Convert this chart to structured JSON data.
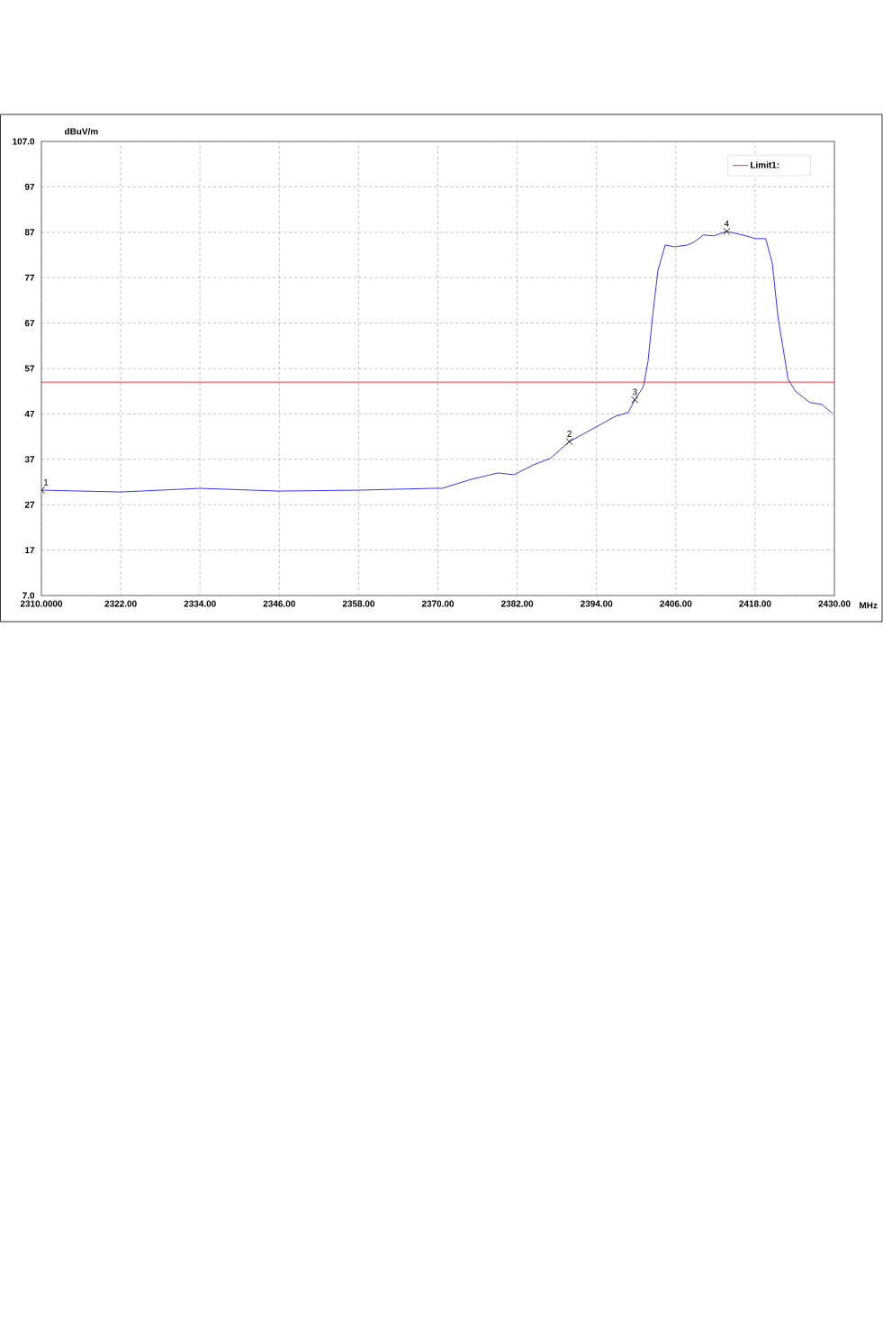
{
  "chart_data": {
    "type": "line",
    "xlabel": "MHz",
    "ylabel": "dBuV/m",
    "xlim": [
      2310,
      2430
    ],
    "ylim": [
      7,
      107
    ],
    "xticks": [
      {
        "value": 2310,
        "label": "2310.0000"
      },
      {
        "value": 2322,
        "label": "2322.00"
      },
      {
        "value": 2334,
        "label": "2334.00"
      },
      {
        "value": 2346,
        "label": "2346.00"
      },
      {
        "value": 2358,
        "label": "2358.00"
      },
      {
        "value": 2370,
        "label": "2370.00"
      },
      {
        "value": 2382,
        "label": "2382.00"
      },
      {
        "value": 2394,
        "label": "2394.00"
      },
      {
        "value": 2406,
        "label": "2406.00"
      },
      {
        "value": 2418,
        "label": "2418.00"
      },
      {
        "value": 2430,
        "label": "2430.00"
      }
    ],
    "yticks": [
      {
        "value": 7,
        "label": "7.0"
      },
      17,
      27,
      37,
      47,
      57,
      67,
      77,
      87,
      97,
      {
        "value": 107,
        "label": "107.0"
      }
    ],
    "grid": true,
    "legend": "top right",
    "series": [
      {
        "color": "#0000ff",
        "x": [
          2310,
          2322,
          2334,
          2346,
          2358,
          2369.1,
          2370.6,
          2375.1,
          2379.1,
          2381.5,
          2384.5,
          2387.0,
          2389.9,
          2392.4,
          2394.9,
          2396.9,
          2398.8,
          2399.8,
          2401.1,
          2401.8,
          2402.5,
          2403.3,
          2404.4,
          2405.8,
          2407.8,
          2408.7,
          2410.2,
          2411.7,
          2413.7,
          2416.1,
          2418.1,
          2419.6,
          2420.6,
          2421.5,
          2422.4,
          2423.0,
          2424.1,
          2426.3,
          2428.1,
          2429.7
        ],
        "values": [
          30.2,
          29.8,
          30.6,
          30.0,
          30.2,
          30.6,
          30.6,
          32.6,
          34.0,
          33.6,
          35.8,
          37.2,
          40.9,
          42.9,
          44.9,
          46.5,
          47.3,
          50.1,
          53.0,
          58.6,
          68.7,
          78.6,
          84.2,
          83.8,
          84.2,
          84.8,
          86.4,
          86.2,
          87.2,
          86.4,
          85.6,
          85.6,
          80.2,
          67.9,
          60.0,
          54.6,
          52.0,
          49.5,
          49.1,
          47.1
        ]
      },
      {
        "name": "Limit1:",
        "color": "#ff0000",
        "x": [
          2310,
          2430
        ],
        "values": [
          54,
          54
        ]
      }
    ],
    "annotations": [
      {
        "text": "1",
        "x": 2310,
        "y": 30.2
      },
      {
        "text": "2",
        "x": 2389.9,
        "y": 40.9
      },
      {
        "text": "3",
        "x": 2399.8,
        "y": 50.1
      },
      {
        "text": "4",
        "x": 2413.7,
        "y": 87.2
      }
    ]
  }
}
